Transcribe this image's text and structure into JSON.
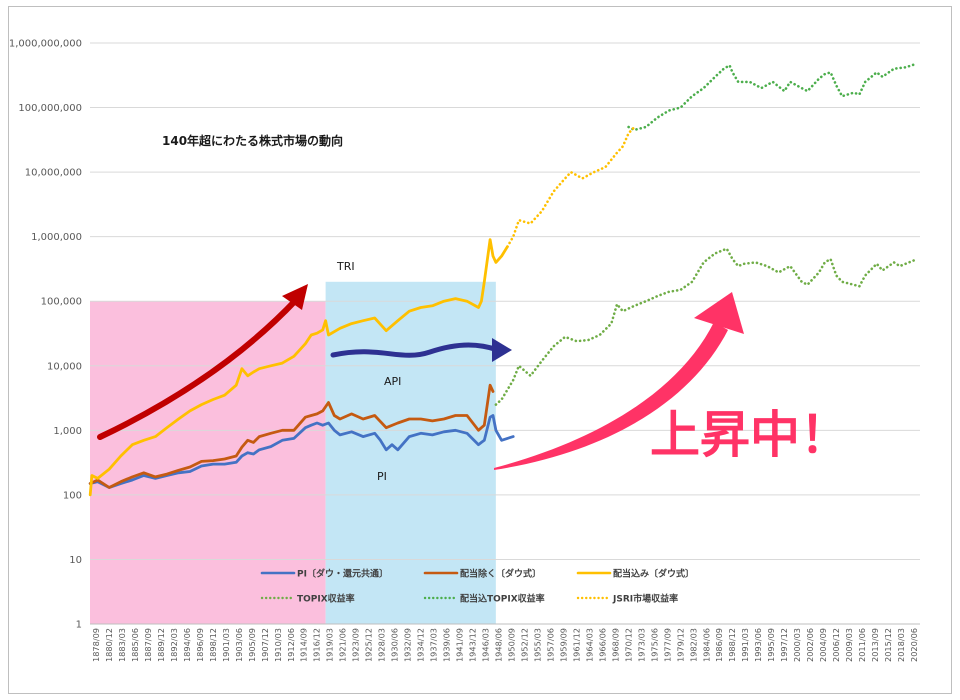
{
  "chart_data": {
    "type": "line",
    "title": "140年超にわたる株式市場の動向",
    "xlabel": "",
    "ylabel": "",
    "y_scale": "log",
    "ylim": [
      1,
      1000000000
    ],
    "y_ticks": [
      {
        "value": 1,
        "label": "1"
      },
      {
        "value": 10,
        "label": "10"
      },
      {
        "value": 100,
        "label": "100"
      },
      {
        "value": 1000,
        "label": "1,000"
      },
      {
        "value": 10000,
        "label": "10,000"
      },
      {
        "value": 100000,
        "label": "100,000"
      },
      {
        "value": 1000000,
        "label": "1,000,000"
      },
      {
        "value": 10000000,
        "label": "10,000,000"
      },
      {
        "value": 100000000,
        "label": "100,000,000"
      },
      {
        "value": 1000000000,
        "label": "1,000,000,000"
      }
    ],
    "xlim": [
      1878.67,
      2022.5
    ],
    "x_ticks": [
      "1878/09",
      "1880/12",
      "1883/03",
      "1885/06",
      "1887/09",
      "1889/12",
      "1892/03",
      "1894/06",
      "1896/09",
      "1898/12",
      "1901/03",
      "1903/06",
      "1905/09",
      "1907/12",
      "1910/03",
      "1912/06",
      "1914/09",
      "1916/12",
      "1919/03",
      "1921/06",
      "1923/09",
      "1925/12",
      "1928/03",
      "1930/06",
      "1932/09",
      "1934/12",
      "1937/03",
      "1939/06",
      "1941/09",
      "1943/12",
      "1946/03",
      "1948/06",
      "1950/09",
      "1952/12",
      "1955/03",
      "1957/06",
      "1959/09",
      "1961/12",
      "1964/03",
      "1966/06",
      "1968/09",
      "1970/12",
      "1973/03",
      "1975/06",
      "1977/09",
      "1979/12",
      "1982/03",
      "1984/06",
      "1986/09",
      "1988/12",
      "1991/03",
      "1993/06",
      "1995/09",
      "1997/12",
      "2000/03",
      "2002/06",
      "2004/09",
      "2006/12",
      "2009/03",
      "2011/06",
      "2013/09",
      "2015/12",
      "2018/03",
      "2020/06"
    ],
    "shaded_regions": [
      {
        "from": 1878.67,
        "to": 1919.5,
        "y_from": 1,
        "y_to": 100000,
        "color": "#fbbfdd"
      },
      {
        "from": 1919.5,
        "to": 1949.0,
        "y_from": 1,
        "y_to": 200000,
        "color": "#c3e6f5"
      }
    ],
    "series": [
      {
        "name": "PI〔ダウ・還元共通〕",
        "color": "#4472c4",
        "style": "solid",
        "x": [
          1878.7,
          1880,
          1882,
          1884,
          1886,
          1888,
          1890,
          1892,
          1894,
          1896,
          1898,
          1900,
          1902,
          1904,
          1905,
          1906,
          1907,
          1908,
          1910,
          1912,
          1914,
          1916,
          1917,
          1918,
          1919,
          1920,
          1921,
          1922,
          1924,
          1926,
          1928,
          1929,
          1930,
          1931,
          1932,
          1934,
          1936,
          1938,
          1940,
          1942,
          1944,
          1946,
          1946.5,
          1947,
          1948,
          1948.5,
          1949,
          1950,
          1951,
          1952
        ],
        "y": [
          150,
          160,
          130,
          150,
          170,
          200,
          180,
          200,
          220,
          230,
          280,
          300,
          300,
          320,
          400,
          450,
          430,
          500,
          560,
          700,
          750,
          1100,
          1200,
          1300,
          1200,
          1300,
          1000,
          850,
          950,
          800,
          900,
          700,
          500,
          600,
          500,
          800,
          900,
          850,
          950,
          1000,
          900,
          600,
          650,
          700,
          1600,
          1700,
          1000,
          700,
          750,
          800
        ]
      },
      {
        "name": "配当除く〔ダウ式〕",
        "color": "#c55a11",
        "style": "solid",
        "x": [
          1878.7,
          1880,
          1882,
          1884,
          1886,
          1888,
          1890,
          1892,
          1894,
          1896,
          1898,
          1900,
          1902,
          1904,
          1905,
          1906,
          1907,
          1908,
          1910,
          1912,
          1914,
          1916,
          1917,
          1918,
          1919,
          1920,
          1921,
          1922,
          1924,
          1926,
          1928,
          1930,
          1932,
          1934,
          1936,
          1938,
          1940,
          1942,
          1944,
          1946,
          1946.5,
          1947,
          1948,
          1948.5
        ],
        "y": [
          150,
          170,
          130,
          160,
          190,
          220,
          190,
          210,
          240,
          270,
          330,
          340,
          360,
          400,
          550,
          700,
          650,
          800,
          900,
          1000,
          1000,
          1600,
          1700,
          1800,
          2000,
          2700,
          1700,
          1500,
          1800,
          1500,
          1700,
          1100,
          1300,
          1500,
          1500,
          1400,
          1500,
          1700,
          1700,
          1000,
          1100,
          1200,
          5000,
          4000
        ]
      },
      {
        "name": "配当込み〔ダウ式〕",
        "color": "#ffc000",
        "style": "solid",
        "x": [
          1878.7,
          1879,
          1880,
          1882,
          1884,
          1886,
          1888,
          1890,
          1892,
          1894,
          1896,
          1898,
          1900,
          1902,
          1904,
          1905,
          1906,
          1907,
          1908,
          1910,
          1912,
          1914,
          1916,
          1917,
          1918,
          1919,
          1919.5,
          1920,
          1922,
          1924,
          1926,
          1928,
          1930,
          1932,
          1934,
          1936,
          1938,
          1940,
          1942,
          1944,
          1946,
          1946.5,
          1947,
          1948,
          1948.5,
          1949,
          1950,
          1951
        ],
        "y": [
          100,
          200,
          180,
          250,
          400,
          600,
          700,
          800,
          1100,
          1500,
          2000,
          2500,
          3000,
          3500,
          5000,
          9000,
          7000,
          8000,
          9000,
          10000,
          11000,
          14000,
          22000,
          30000,
          32000,
          36000,
          50000,
          30000,
          38000,
          45000,
          50000,
          55000,
          35000,
          50000,
          70000,
          80000,
          85000,
          100000,
          110000,
          100000,
          80000,
          100000,
          200000,
          900000,
          500000,
          400000,
          500000,
          700000
        ]
      },
      {
        "name": "TOPIX収益率",
        "color": "#70ad47",
        "style": "dotted",
        "x": [
          1949,
          1950,
          1952,
          1953,
          1955,
          1957,
          1959,
          1961,
          1963,
          1965,
          1967,
          1969,
          1970,
          1971,
          1973,
          1975,
          1977,
          1979,
          1981,
          1983,
          1985,
          1987,
          1989,
          1990,
          1991,
          1992,
          1994,
          1996,
          1998,
          2000,
          2002,
          2003,
          2005,
          2006,
          2007,
          2008,
          2009,
          2011,
          2012,
          2013,
          2015,
          2016,
          2018,
          2019,
          2020,
          2022
        ],
        "y": [
          2500,
          3000,
          6000,
          10000,
          7000,
          12000,
          20000,
          28000,
          24000,
          25000,
          30000,
          45000,
          90000,
          70000,
          85000,
          100000,
          120000,
          140000,
          150000,
          200000,
          400000,
          550000,
          650000,
          450000,
          350000,
          380000,
          400000,
          350000,
          280000,
          350000,
          200000,
          180000,
          280000,
          400000,
          450000,
          250000,
          200000,
          180000,
          170000,
          250000,
          380000,
          300000,
          400000,
          350000,
          380000,
          450000
        ]
      },
      {
        "name": "配当込TOPIX収益率",
        "color": "#4cae4c",
        "style": "dotted",
        "x": [
          1972,
          1973,
          1975,
          1977,
          1979,
          1981,
          1983,
          1985,
          1987,
          1988.5,
          1989.5,
          1990,
          1991,
          1993,
          1995,
          1997,
          1999,
          2000,
          2002,
          2003,
          2005,
          2006,
          2007,
          2008,
          2009,
          2011,
          2012,
          2013,
          2015,
          2016,
          2018,
          2020,
          2022
        ],
        "y": [
          50000000,
          45000000,
          50000000,
          70000000,
          90000000,
          100000000,
          150000000,
          200000000,
          300000000,
          400000000,
          450000000,
          350000000,
          250000000,
          250000000,
          200000000,
          250000000,
          180000000,
          250000000,
          200000000,
          180000000,
          280000000,
          330000000,
          350000000,
          220000000,
          150000000,
          170000000,
          160000000,
          250000000,
          350000000,
          300000000,
          400000000,
          420000000,
          480000000
        ]
      },
      {
        "name": "JSRI市場収益率",
        "color": "#ffc000",
        "style": "dotted",
        "x": [
          1951,
          1952,
          1953,
          1955,
          1957,
          1959,
          1961,
          1962,
          1964,
          1966,
          1968,
          1970,
          1971,
          1972,
          1973
        ],
        "y": [
          700000,
          1000000,
          1800000,
          1600000,
          2500000,
          5000000,
          8000000,
          10000000,
          8000000,
          10000000,
          12000000,
          20000000,
          25000000,
          40000000,
          50000000
        ]
      }
    ]
  },
  "annotations": {
    "tri": "TRI",
    "api": "API",
    "pi": "PI",
    "rising": "上昇中！"
  },
  "arrows": {
    "red_color": "#c00000",
    "blue_color": "#2e3192",
    "pink_color": "#ff3366"
  }
}
